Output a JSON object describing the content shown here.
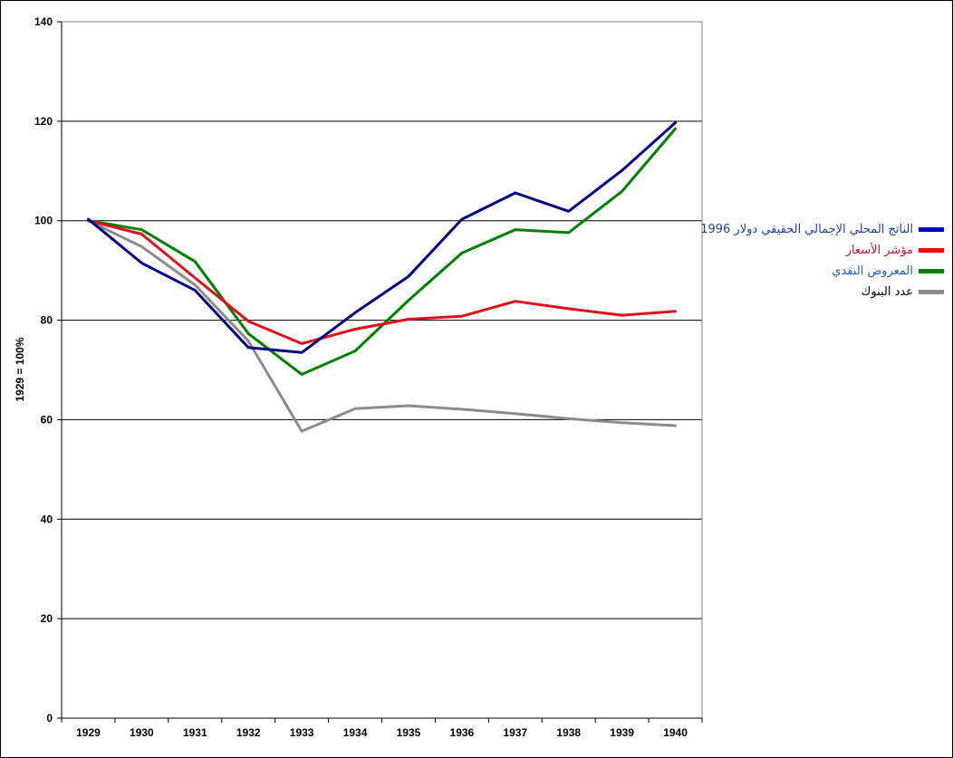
{
  "chart_data": {
    "type": "line",
    "title": "",
    "xlabel": "",
    "ylabel": "1929 = 100%",
    "ylim": [
      0,
      140
    ],
    "yticks": [
      0,
      20,
      40,
      60,
      80,
      100,
      120,
      140
    ],
    "grid": "horizontal",
    "legend_position": "right",
    "categories": [
      "1929",
      "1930",
      "1931",
      "1932",
      "1933",
      "1934",
      "1935",
      "1936",
      "1937",
      "1938",
      "1939",
      "1940"
    ],
    "series": [
      {
        "name": "الناتج المحلي الإجمالي الحقيقي دولار 1996",
        "color": "#000080",
        "swatch": "#0000cc",
        "label_color": "#1f3f9f",
        "values": [
          100.3,
          91.5,
          86.0,
          74.5,
          73.5,
          81.5,
          88.8,
          100.3,
          105.6,
          101.9,
          110.1,
          119.7
        ]
      },
      {
        "name": "مؤشر الأسعار",
        "color": "#e0101a",
        "swatch": "#ff0000",
        "label_color": "#d0103a",
        "values": [
          100.0,
          97.3,
          88.5,
          79.8,
          75.3,
          78.2,
          80.2,
          80.8,
          83.8,
          82.3,
          81.0,
          81.8
        ]
      },
      {
        "name": "المعروض النقدي",
        "color": "#008000",
        "swatch": "#008000",
        "label_color": "#1f5faf",
        "values": [
          100.0,
          98.2,
          91.8,
          77.3,
          69.1,
          73.8,
          84.0,
          93.5,
          98.2,
          97.6,
          105.9,
          118.5
        ]
      },
      {
        "name": "عدد البنوك",
        "color": "#8c8c8c",
        "swatch": "#8c8c8c",
        "label_color": "#000000",
        "values": [
          100.0,
          94.8,
          87.1,
          75.8,
          57.7,
          62.2,
          62.8,
          62.1,
          61.2,
          60.2,
          59.4,
          58.8
        ]
      }
    ]
  }
}
